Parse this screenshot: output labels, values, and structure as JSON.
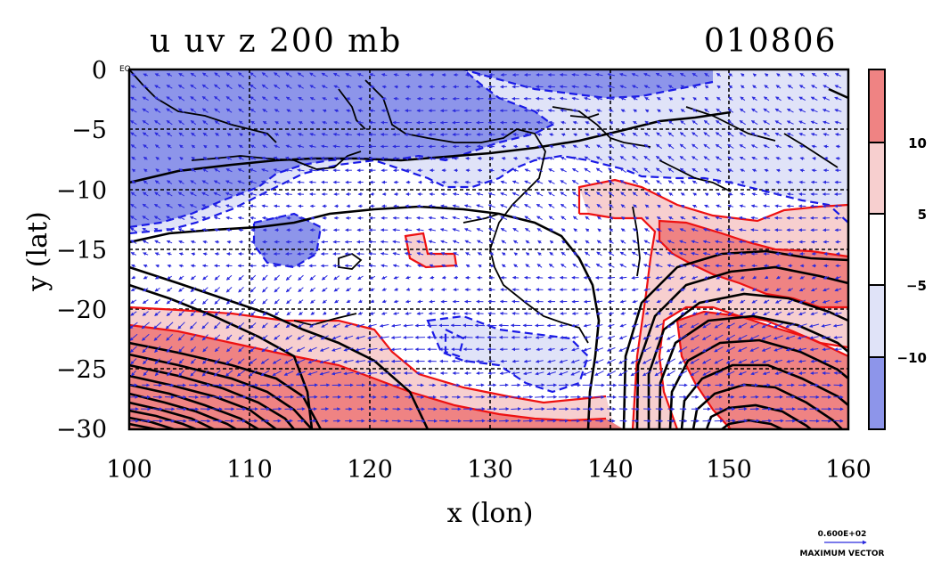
{
  "title_left": "u uv z 200 mb",
  "title_right": "010806",
  "map_corner_label": "EQ",
  "x_axis": {
    "label": "x (lon)",
    "ticks": [
      100,
      110,
      120,
      130,
      140,
      150,
      160
    ],
    "range": [
      100,
      160
    ]
  },
  "y_axis": {
    "label": "y (lat)",
    "ticks": [
      "0",
      "−5",
      "−10",
      "−15",
      "−20",
      "−25",
      "−30"
    ],
    "range": [
      -30,
      0
    ]
  },
  "colorbar": {
    "labels": [
      "10",
      "5",
      "−5",
      "−10"
    ],
    "levels": [
      -10,
      -5,
      5,
      10
    ],
    "colors": [
      "#8d95ea",
      "#e0e3f8",
      "#ffffff",
      "#f7cfcf",
      "#ef8383"
    ]
  },
  "vector_key": {
    "value": "0.600E+02",
    "caption": "MAXIMUM VECTOR"
  },
  "colors": {
    "negative_contour": "#1a1ae6",
    "positive_contour": "#ee1111",
    "vector": "#2b2bdd"
  },
  "chart_data": {
    "type": "heatmap",
    "field": "u wind with uv vectors and z contours",
    "level": "200 mb",
    "date": "010806",
    "x_range": [
      100,
      160
    ],
    "y_range": [
      -30,
      0
    ],
    "xlabel": "x (lon)",
    "ylabel": "y (lat)",
    "contour_levels": [
      -10,
      -5,
      5,
      10
    ],
    "grid": true
  }
}
